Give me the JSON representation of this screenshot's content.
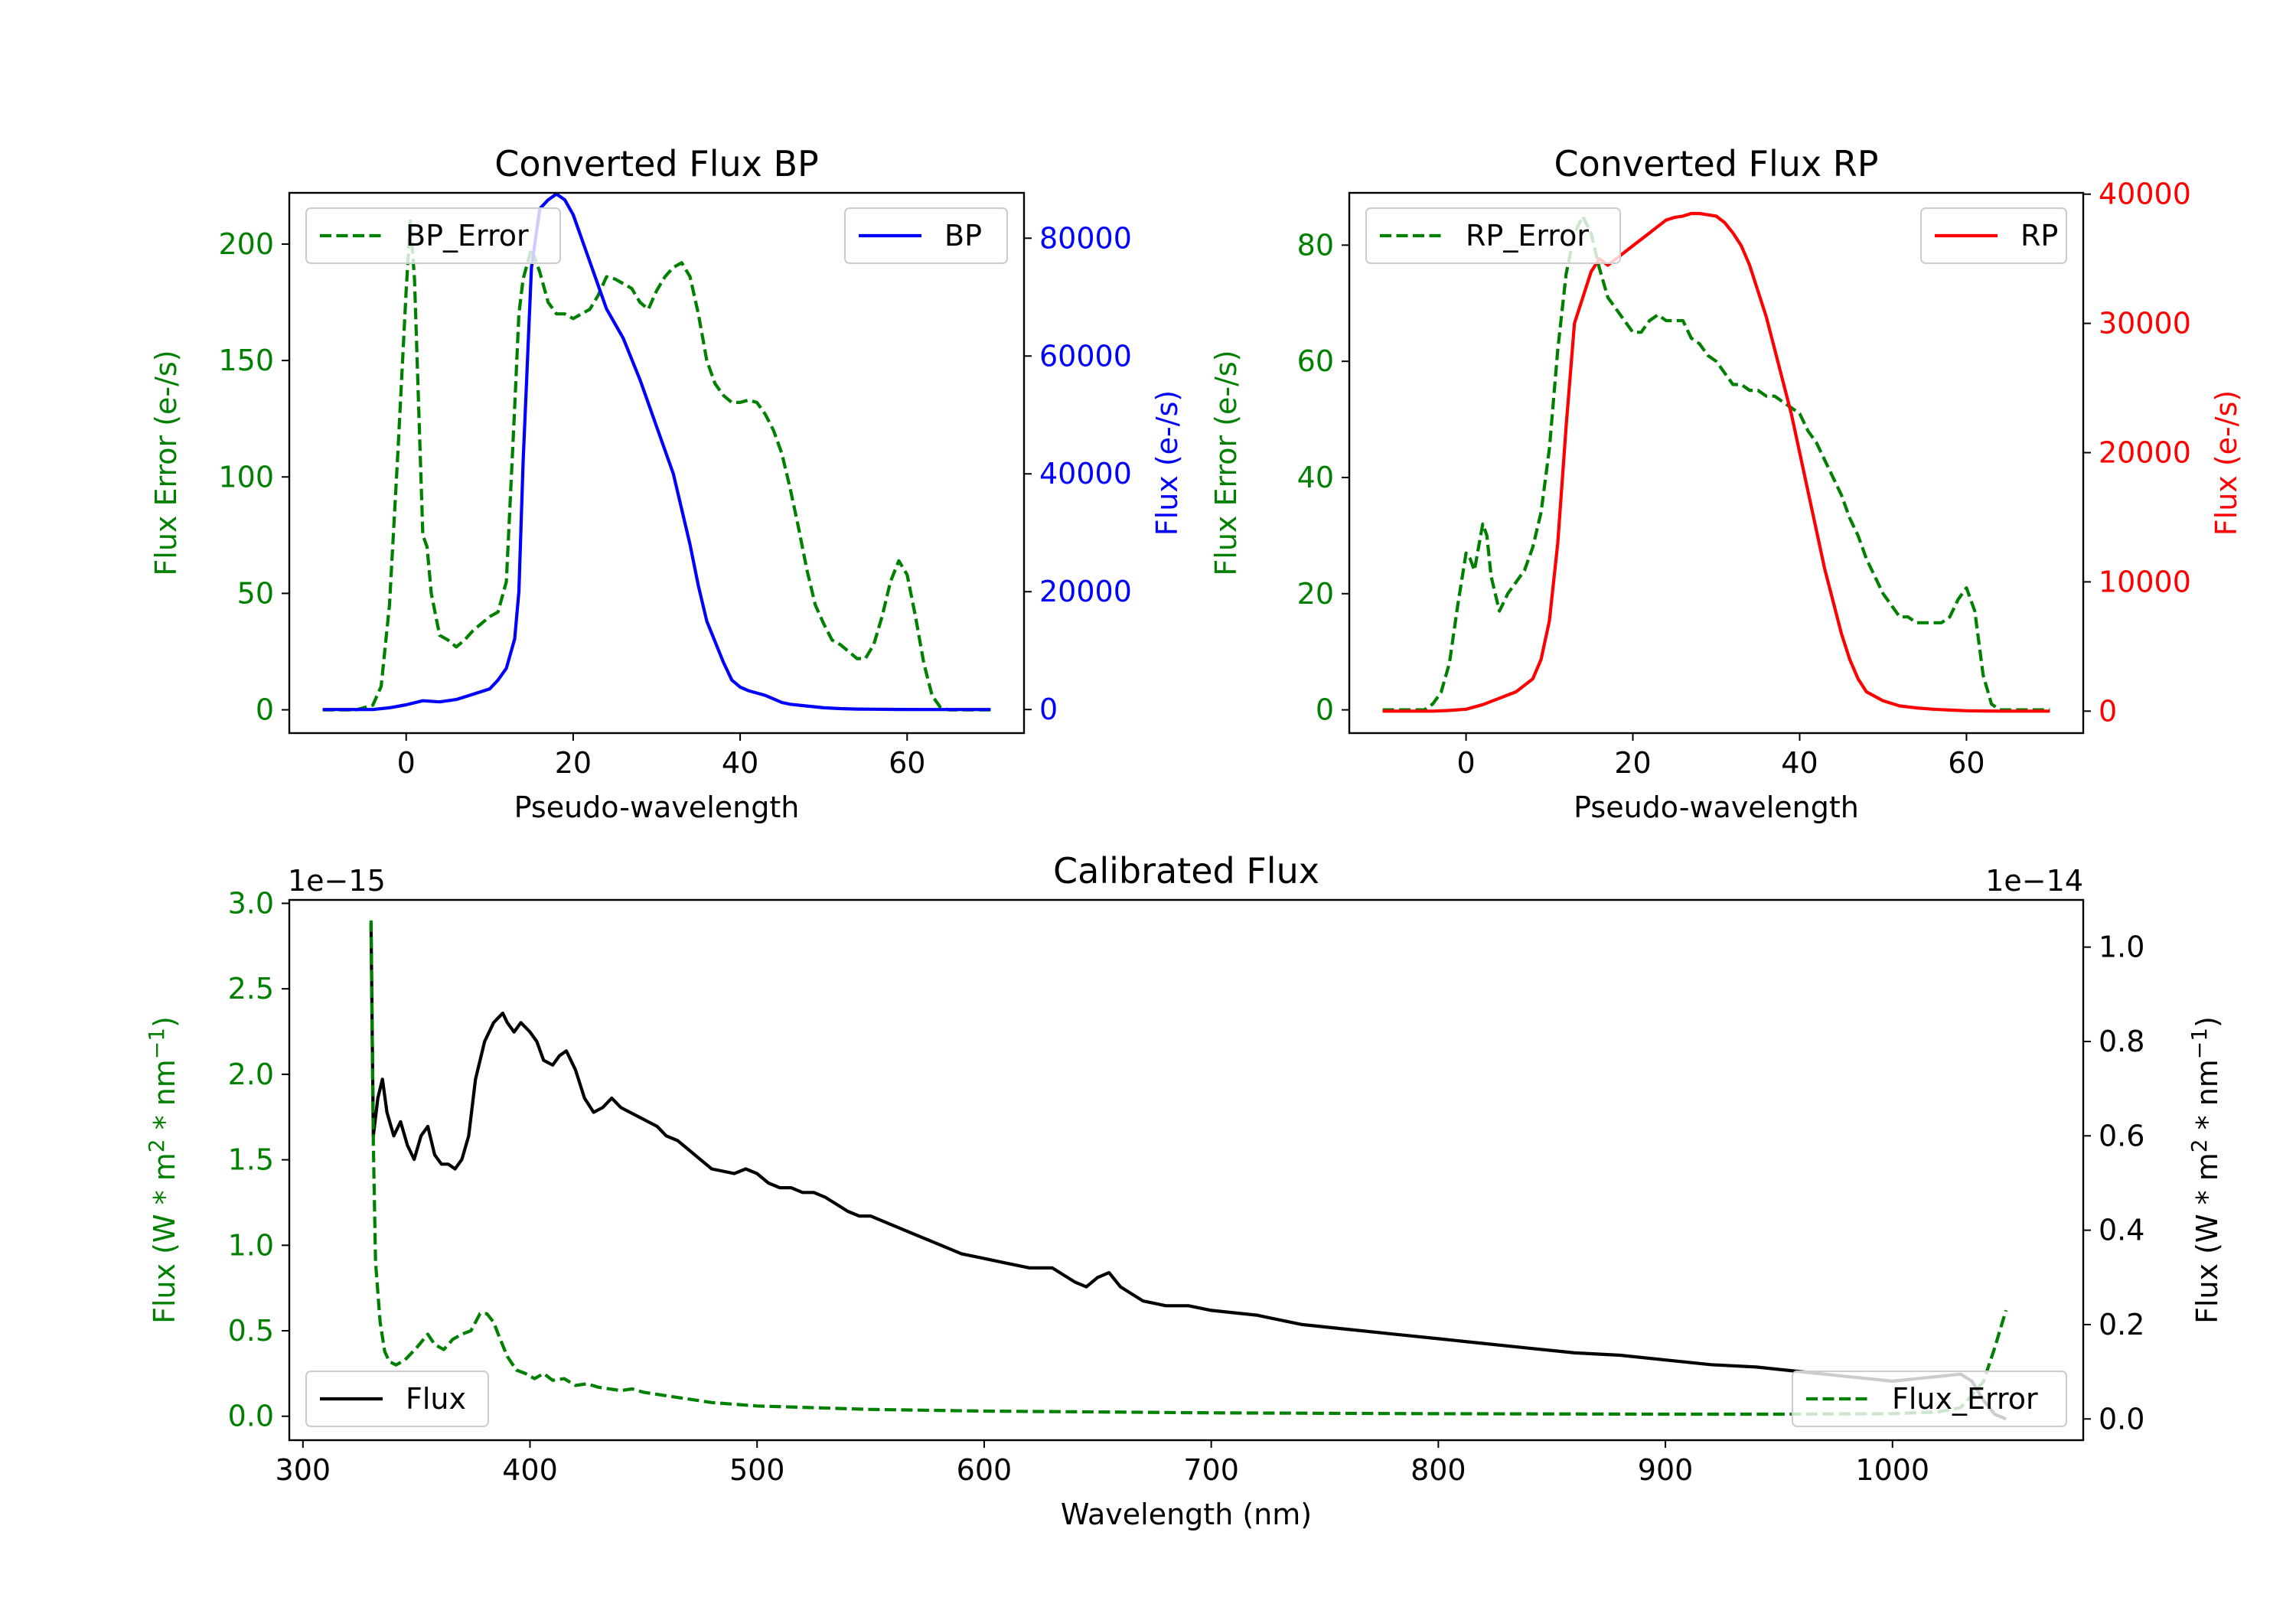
{
  "chart_data": [
    {
      "id": "bp",
      "type": "line",
      "title": "Converted Flux BP",
      "xlabel": "Pseudo-wavelength",
      "xlim": [
        -14,
        74
      ],
      "xticks": [
        0,
        20,
        40,
        60
      ],
      "left_axis": {
        "label": "Flux Error (e-/s)",
        "color": "#008000",
        "ylim": [
          -10,
          222
        ],
        "ticks": [
          0,
          50,
          100,
          150,
          200
        ]
      },
      "right_axis": {
        "label": "Flux (e-/s)",
        "color": "#0000ff",
        "ylim": [
          -4000,
          87700
        ],
        "ticks": [
          0,
          20000,
          40000,
          60000,
          80000
        ]
      },
      "series": [
        {
          "name": "BP_Error",
          "axis": "left",
          "color": "#008000",
          "dash": true,
          "x": [
            -10,
            -6,
            -4,
            -3,
            -2,
            -1,
            0,
            0.5,
            1,
            2,
            2.5,
            3,
            4,
            5,
            6,
            7,
            8,
            9,
            10,
            11,
            12,
            13,
            13.5,
            14,
            15,
            16,
            17,
            18,
            19,
            20,
            21,
            22,
            23,
            24,
            25,
            26,
            27,
            28,
            29,
            30,
            31,
            32,
            33,
            34,
            35,
            36,
            37,
            38,
            39,
            40,
            41,
            42,
            43,
            44,
            45,
            46,
            47,
            48,
            49,
            50,
            51,
            52,
            53,
            54,
            55,
            56,
            57,
            58,
            59,
            60,
            61,
            62,
            63,
            64,
            65,
            66,
            70
          ],
          "values": [
            0,
            0,
            2,
            10,
            45,
            110,
            180,
            210,
            185,
            75,
            70,
            50,
            32,
            30,
            27,
            30,
            34,
            37,
            40,
            42,
            55,
            130,
            170,
            185,
            198,
            188,
            175,
            170,
            170,
            168,
            170,
            172,
            178,
            186,
            185,
            183,
            181,
            175,
            172,
            180,
            186,
            190,
            192,
            186,
            170,
            150,
            140,
            135,
            132,
            132,
            133,
            132,
            127,
            120,
            110,
            95,
            78,
            60,
            45,
            37,
            30,
            28,
            25,
            22,
            22,
            28,
            40,
            55,
            64,
            58,
            40,
            20,
            6,
            1,
            0,
            0,
            0
          ]
        },
        {
          "name": "BP",
          "axis": "right",
          "color": "#0000ff",
          "dash": false,
          "x": [
            -10,
            -6,
            -4,
            -2,
            0,
            2,
            4,
            6,
            8,
            10,
            11,
            12,
            13,
            13.5,
            14,
            15,
            16,
            17,
            18,
            19,
            20,
            22,
            24,
            26,
            28,
            30,
            31,
            32,
            34,
            35,
            36,
            38,
            39,
            40,
            41,
            42,
            43,
            44,
            45,
            46,
            48,
            50,
            52,
            54,
            56,
            58,
            60,
            62,
            64,
            66,
            70
          ],
          "values": [
            0,
            0,
            0,
            300,
            800,
            1500,
            1300,
            1700,
            2600,
            3500,
            5000,
            7000,
            12000,
            20000,
            42000,
            75000,
            85000,
            86500,
            87500,
            86500,
            84000,
            76000,
            68000,
            63000,
            56000,
            48000,
            44000,
            40000,
            28000,
            21000,
            15000,
            8000,
            5000,
            3800,
            3200,
            2800,
            2400,
            1800,
            1200,
            900,
            600,
            300,
            150,
            80,
            50,
            30,
            10,
            0,
            0,
            0,
            0
          ]
        }
      ],
      "legends": [
        "BP_Error",
        "BP"
      ]
    },
    {
      "id": "rp",
      "type": "line",
      "title": "Converted Flux RP",
      "xlabel": "Pseudo-wavelength",
      "xlim": [
        -14,
        74
      ],
      "xticks": [
        0,
        20,
        40,
        60
      ],
      "left_axis": {
        "label": "Flux Error (e-/s)",
        "color": "#008000",
        "ylim": [
          -4,
          89
        ],
        "ticks": [
          0,
          20,
          40,
          60,
          80
        ]
      },
      "right_axis": {
        "label": "Flux (e-/s)",
        "color": "#ff0000",
        "ylim": [
          -1700,
          40100
        ],
        "ticks": [
          0,
          10000,
          20000,
          30000,
          40000
        ]
      },
      "series": [
        {
          "name": "RP_Error",
          "axis": "left",
          "color": "#008000",
          "dash": true,
          "x": [
            -10,
            -5,
            -4,
            -3,
            -2,
            -1,
            0,
            0.5,
            1,
            1.5,
            2,
            2.5,
            3,
            3.5,
            4,
            5,
            6,
            7,
            8,
            9,
            10,
            11,
            12,
            13,
            14,
            15,
            16,
            17,
            18,
            19,
            20,
            21,
            22,
            23,
            24,
            25,
            26,
            27,
            28,
            29,
            30,
            31,
            32,
            33,
            34,
            35,
            36,
            37,
            38,
            39,
            40,
            41,
            42,
            43,
            44,
            45,
            46,
            47,
            48,
            49,
            50,
            51,
            52,
            53,
            54,
            55,
            56,
            57,
            58,
            59,
            60,
            61,
            62,
            63,
            64,
            70
          ],
          "values": [
            0,
            0,
            1,
            3,
            8,
            18,
            27,
            26,
            24,
            28,
            32,
            30,
            23,
            20,
            17,
            20,
            22,
            24,
            28,
            34,
            45,
            62,
            75,
            82,
            85,
            82,
            76,
            71,
            69,
            67,
            65,
            65,
            67,
            68,
            67,
            67,
            67,
            64,
            63,
            61,
            60,
            58,
            56,
            56,
            55,
            55,
            54,
            54,
            53,
            52,
            51,
            48,
            46,
            43,
            40,
            37,
            33,
            30,
            26,
            23,
            20,
            18,
            16,
            16,
            15,
            15,
            15,
            15,
            16,
            19,
            21,
            17,
            6,
            1,
            0,
            0
          ]
        },
        {
          "name": "RP",
          "axis": "right",
          "color": "#ff0000",
          "dash": false,
          "x": [
            -10,
            -6,
            -4,
            -2,
            0,
            2,
            4,
            6,
            8,
            9,
            10,
            11,
            12,
            13,
            14,
            15,
            16,
            17,
            18,
            19,
            20,
            21,
            22,
            23,
            24,
            25,
            26,
            27,
            28,
            29,
            30,
            31,
            32,
            33,
            34,
            35,
            36,
            37,
            38,
            39,
            40,
            41,
            42,
            43,
            44,
            45,
            46,
            47,
            48,
            50,
            52,
            54,
            56,
            58,
            60,
            62,
            64,
            66,
            70
          ],
          "values": [
            0,
            0,
            0,
            50,
            150,
            500,
            1000,
            1500,
            2500,
            4000,
            7000,
            13000,
            22000,
            30000,
            32000,
            34000,
            35000,
            34500,
            35000,
            35500,
            36000,
            36500,
            37000,
            37500,
            38000,
            38200,
            38300,
            38500,
            38500,
            38400,
            38300,
            37800,
            37000,
            36000,
            34500,
            32500,
            30500,
            28000,
            25500,
            23000,
            20000,
            17000,
            14000,
            11000,
            8500,
            6000,
            4000,
            2500,
            1500,
            800,
            400,
            250,
            150,
            80,
            30,
            10,
            0,
            0,
            0
          ]
        }
      ],
      "legends": [
        "RP_Error",
        "RP"
      ]
    },
    {
      "id": "cal",
      "type": "line",
      "title": "Calibrated Flux",
      "xlabel": "Wavelength (nm)",
      "xlim": [
        294,
        1084
      ],
      "xticks": [
        300,
        400,
        500,
        600,
        700,
        800,
        900,
        1000
      ],
      "left_axis": {
        "label": "Flux (W * m",
        "label_sup": "2",
        "label_mid": " * nm",
        "label_sup2": "−1",
        "label_end": ")",
        "color": "#008000",
        "ylim": [
          -0.14,
          3.02
        ],
        "ticks": [
          0.0,
          0.5,
          1.0,
          1.5,
          2.0,
          2.5,
          3.0
        ],
        "tick_labels": [
          "0.0",
          "0.5",
          "1.0",
          "1.5",
          "2.0",
          "2.5",
          "3.0"
        ],
        "offset_text": "1e−15"
      },
      "right_axis": {
        "label": "Flux (W * m",
        "label_sup": "2",
        "label_mid": " * nm",
        "label_sup2": "−1",
        "label_end": ")",
        "color": "#000000",
        "ylim": [
          -0.045,
          1.1
        ],
        "ticks": [
          0.0,
          0.2,
          0.4,
          0.6,
          0.8,
          1.0
        ],
        "tick_labels": [
          "0.0",
          "0.2",
          "0.4",
          "0.6",
          "0.8",
          "1.0"
        ],
        "offset_text": "1e−14"
      },
      "series": [
        {
          "name": "Flux",
          "axis": "right",
          "color": "#000000",
          "dash": false,
          "x": [
            330,
            331,
            333,
            335,
            337,
            340,
            343,
            346,
            349,
            352,
            355,
            358,
            361,
            364,
            367,
            370,
            373,
            376,
            380,
            384,
            388,
            390,
            393,
            396,
            400,
            403,
            406,
            410,
            413,
            416,
            420,
            424,
            428,
            432,
            436,
            440,
            444,
            448,
            452,
            456,
            460,
            465,
            470,
            475,
            480,
            490,
            495,
            500,
            505,
            510,
            515,
            520,
            525,
            530,
            540,
            545,
            550,
            560,
            570,
            580,
            590,
            600,
            610,
            620,
            630,
            640,
            645,
            650,
            655,
            660,
            670,
            680,
            690,
            700,
            720,
            740,
            760,
            780,
            800,
            820,
            840,
            860,
            880,
            900,
            920,
            940,
            960,
            980,
            1000,
            1010,
            1020,
            1030,
            1035,
            1040,
            1045,
            1050
          ],
          "values": [
            1.05,
            0.6,
            0.68,
            0.72,
            0.65,
            0.6,
            0.63,
            0.58,
            0.55,
            0.6,
            0.62,
            0.56,
            0.54,
            0.54,
            0.53,
            0.55,
            0.6,
            0.72,
            0.8,
            0.84,
            0.86,
            0.84,
            0.82,
            0.84,
            0.82,
            0.8,
            0.76,
            0.75,
            0.77,
            0.78,
            0.74,
            0.68,
            0.65,
            0.66,
            0.68,
            0.66,
            0.65,
            0.64,
            0.63,
            0.62,
            0.6,
            0.59,
            0.57,
            0.55,
            0.53,
            0.52,
            0.53,
            0.52,
            0.5,
            0.49,
            0.49,
            0.48,
            0.48,
            0.47,
            0.44,
            0.43,
            0.43,
            0.41,
            0.39,
            0.37,
            0.35,
            0.34,
            0.33,
            0.32,
            0.32,
            0.29,
            0.28,
            0.3,
            0.31,
            0.28,
            0.25,
            0.24,
            0.24,
            0.23,
            0.22,
            0.2,
            0.19,
            0.18,
            0.17,
            0.16,
            0.15,
            0.14,
            0.135,
            0.125,
            0.115,
            0.11,
            0.1,
            0.09,
            0.08,
            0.085,
            0.09,
            0.095,
            0.08,
            0.04,
            0.01,
            0.0
          ]
        },
        {
          "name": "Flux_Error",
          "axis": "left",
          "color": "#008000",
          "dash": true,
          "x": [
            330,
            331,
            332,
            334,
            336,
            338,
            341,
            345,
            350,
            355,
            358,
            362,
            366,
            370,
            374,
            378,
            381,
            384,
            386,
            390,
            394,
            398,
            402,
            406,
            410,
            415,
            420,
            425,
            430,
            440,
            445,
            450,
            460,
            480,
            500,
            550,
            600,
            650,
            700,
            800,
            900,
            950,
            1000,
            1020,
            1030,
            1040,
            1045,
            1050
          ],
          "values": [
            2.9,
            1.6,
            0.9,
            0.55,
            0.38,
            0.32,
            0.3,
            0.33,
            0.4,
            0.48,
            0.42,
            0.39,
            0.45,
            0.48,
            0.5,
            0.6,
            0.6,
            0.55,
            0.48,
            0.35,
            0.27,
            0.25,
            0.22,
            0.25,
            0.21,
            0.22,
            0.18,
            0.19,
            0.17,
            0.15,
            0.16,
            0.14,
            0.12,
            0.08,
            0.06,
            0.04,
            0.03,
            0.025,
            0.02,
            0.015,
            0.012,
            0.012,
            0.015,
            0.025,
            0.05,
            0.2,
            0.4,
            0.62
          ]
        }
      ],
      "legends": [
        "Flux",
        "Flux_Error"
      ]
    }
  ]
}
